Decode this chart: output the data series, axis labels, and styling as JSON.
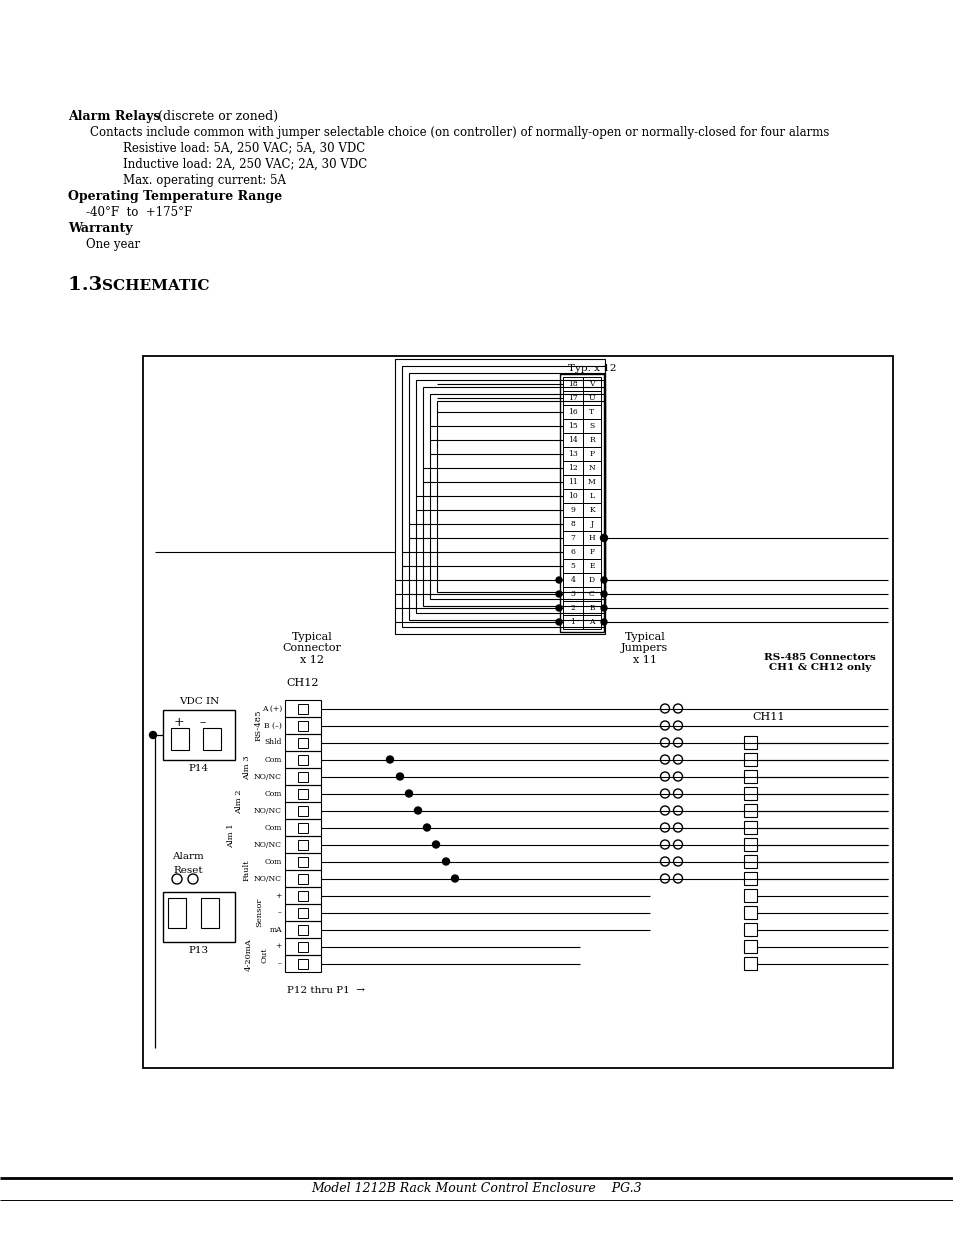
{
  "bg_color": "#ffffff",
  "footer_text": "Model 1212B Rack Mount Control Enclosure    PG.3",
  "alarm_relays_bold": "Alarm Relays",
  "alarm_relays_normal": " (discrete or zoned)",
  "line2": "Contacts include common with jumper selectable choice (on controller) of normally-open or normally-closed for four alarms",
  "line3": "Resistive load: 5A, 250 VAC; 5A, 30 VDC",
  "line4": "Inductive load: 2A, 250 VAC; 2A, 30 VDC",
  "line5": "Max. operating current: 5A",
  "otr_bold": "Operating Temperature Range",
  "otr_val": "-40°F  to  +175°F",
  "warranty_bold": "Warranty",
  "warranty_val": "One year",
  "section_num": "1.3",
  "section_name": "SCHEMATIC",
  "connector_labels_num": [
    18,
    17,
    16,
    15,
    14,
    13,
    12,
    11,
    10,
    9,
    8,
    7,
    6,
    5,
    4,
    3,
    2,
    1
  ],
  "connector_labels_let": [
    "V",
    "U",
    "T",
    "S",
    "R",
    "P",
    "N",
    "M",
    "L",
    "K",
    "J",
    "H",
    "F",
    "E",
    "D",
    "C",
    "B",
    "A"
  ],
  "ch12_row_labels": [
    "A (+)",
    "B (–)",
    "Shld",
    "Com",
    "NO/NC",
    "Com",
    "NO/NC",
    "Com",
    "NO/NC",
    "Com",
    "NO/NC",
    "+",
    "–",
    "mA",
    "+",
    "–"
  ],
  "rs485_label": "RS-485",
  "alm3_label": "Alm 3",
  "alm2_label": "Alm 2",
  "alm1_label": "Alm 1",
  "fault_label": "Fault",
  "sensor_label": "Sensor",
  "ma4_20_label": "4-20mA",
  "out_label": "Out",
  "typical_connector": "Typical\nConnector\nx 12",
  "typical_jumpers": "Typical\nJumpers\nx 11",
  "rs485_conn_label": "RS-485 Connectors\nCH1 & CH12 only",
  "vdc_in": "VDC IN",
  "p14": "P14",
  "p13": "P13",
  "ch12_label": "CH12",
  "ch11_label": "CH11",
  "alarm_reset": "Alarm\nReset",
  "p12_label": "P12 thru P1  →",
  "typ_x12": "Typ. x 12"
}
